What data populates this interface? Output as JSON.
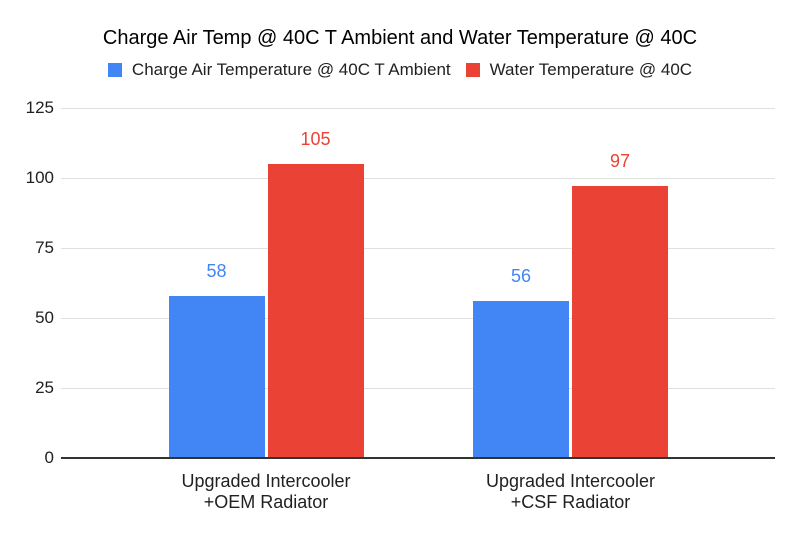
{
  "title": "Charge Air Temp @ 40C T Ambient and Water Temperature @ 40C",
  "colors": {
    "background": "#FFFFFF",
    "gridline": "#E0E0E0",
    "axis_line": "#333333",
    "text": "#212121",
    "title_text": "#000000"
  },
  "chart_data": {
    "type": "bar",
    "title": "Charge Air Temp @ 40C T Ambient and Water Temperature @ 40C",
    "categories": [
      [
        "Upgraded Intercooler",
        "+OEM Radiator"
      ],
      [
        "Upgraded Intercooler",
        "+CSF Radiator"
      ]
    ],
    "series": [
      {
        "name": "Charge Air Temperature @ 40C T Ambient",
        "color": "#4285F4",
        "values": [
          58,
          56
        ]
      },
      {
        "name": "Water Temperature @ 40C",
        "color": "#EA4335",
        "values": [
          105,
          97
        ]
      }
    ],
    "y_ticks": [
      0,
      25,
      50,
      75,
      100,
      125
    ],
    "ylim": [
      0,
      125
    ],
    "xlabel": "",
    "ylabel": "",
    "grid": true,
    "legend_position": "top",
    "value_labels": true
  }
}
